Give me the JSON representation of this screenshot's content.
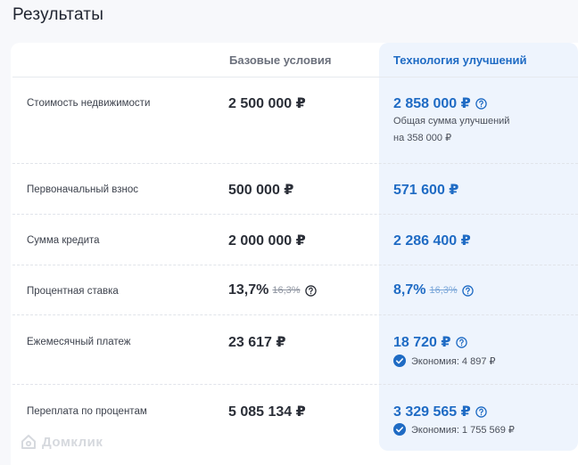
{
  "title": "Результаты",
  "columns": {
    "base": "Базовые условия",
    "tech": "Технология улучшений"
  },
  "rows": [
    {
      "label": "Стоимость недвижимости",
      "base": "2 500 000 ₽",
      "tech": "2 858 000 ₽",
      "tech_note_line1": "Общая сумма улучшений",
      "tech_note_line2": "на 358 000 ₽"
    },
    {
      "label": "Первоначальный взнос",
      "base": "500 000 ₽",
      "tech": "571 600 ₽"
    },
    {
      "label": "Сумма кредита",
      "base": "2 000 000 ₽",
      "tech": "2 286 400 ₽"
    },
    {
      "label": "Процентная ставка",
      "base": "13,7%",
      "base_old": "16,3%",
      "tech": "8,7%",
      "tech_old": "16,3%"
    },
    {
      "label": "Ежемесячный платеж",
      "base": "23 617 ₽",
      "tech": "18 720 ₽",
      "economy": "Экономия: 4 897 ₽"
    },
    {
      "label": "Переплата по процентам",
      "base": "5 085 134 ₽",
      "tech": "3 329 565 ₽",
      "economy": "Экономия: 1 755 569 ₽"
    }
  ],
  "watermark": "Домклик",
  "colors": {
    "accent": "#1f6bc4",
    "highlight_bg": "#eef4fd",
    "text": "#2b2f38",
    "muted": "#6b707c"
  },
  "icons": {
    "help": "question-circle-icon",
    "check": "check-circle-icon"
  }
}
